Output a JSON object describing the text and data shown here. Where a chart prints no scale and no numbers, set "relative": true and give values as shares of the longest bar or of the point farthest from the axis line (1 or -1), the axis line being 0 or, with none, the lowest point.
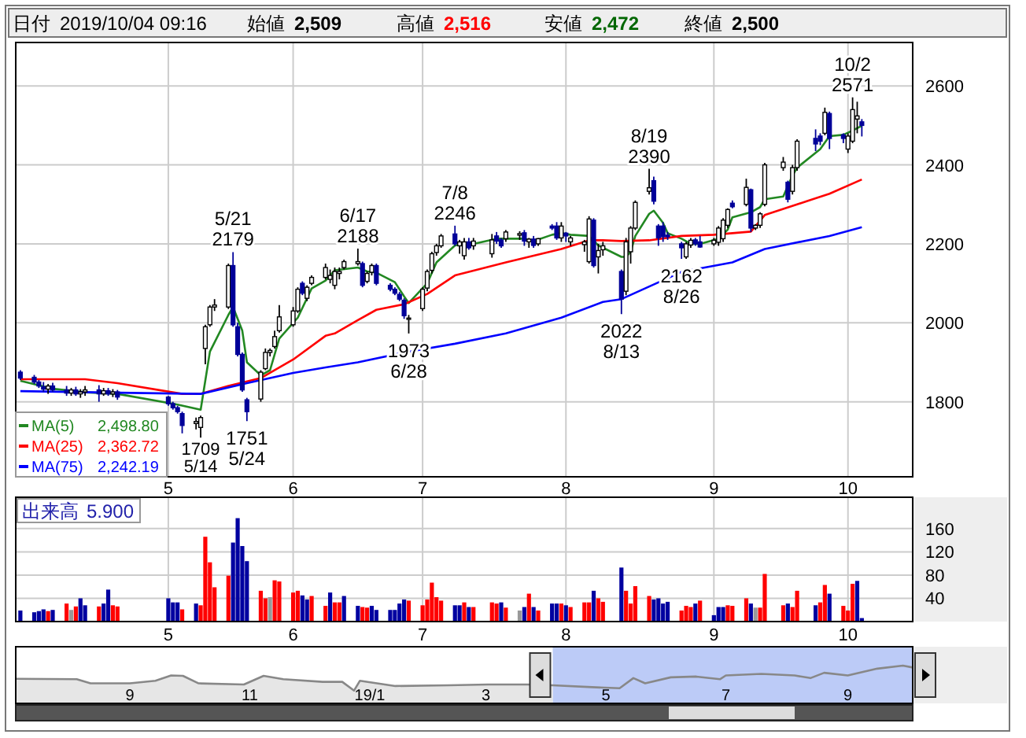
{
  "chart_data": [
    {
      "type": "candlestick",
      "grid": true,
      "legend": "bottom left",
      "colors": [
        "#000099",
        "#000099",
        "#000099",
        "#000099",
        "#ffffff",
        "#000099",
        "#000099",
        "#ffffff",
        "#000099",
        "#ffffff",
        "#ffffff",
        "#000099",
        "#ffffff",
        "#000099",
        "#ffffff",
        "#000099",
        "#000099",
        "#000099",
        "#000099",
        "#000099",
        "#ffffff",
        "#ffffff",
        "#ffffff",
        "#ffffff",
        "#ffffff",
        "#ffffff",
        "#000099",
        "#000099",
        "#000099",
        "#000099",
        "#ffffff",
        "#ffffff",
        "#ffffff",
        "#ffffff",
        "#ffffff",
        "#ffffff",
        "#ffffff",
        "#000099",
        "#ffffff",
        "#ffffff",
        "#ffffff",
        "#ffffff",
        "#ffffff",
        "#ffffff",
        "#ffffff",
        "#ffffff",
        "#000099",
        "#ffffff",
        "#ffffff",
        "#000099",
        "#000099",
        "#000099",
        "#000099",
        "#000099",
        "#ffffff",
        "#ffffff",
        "#ffffff",
        "#ffffff",
        "#ffffff",
        "#ffffff",
        "#000099",
        "#ffffff",
        "#ffffff",
        "#000099",
        "#ffffff",
        "#ffffff",
        "#000099",
        "#000099",
        "#ffffff",
        "#ffffff",
        "#000099",
        "#ffffff",
        "#000099",
        "#ffffff",
        "#000099",
        "#000099",
        "#ffffff",
        "#000099",
        "#ffffff",
        "#ffffff",
        "#ffffff",
        "#000099",
        "#ffffff",
        "#ffffff",
        "#000099",
        "#ffffff",
        "#ffffff",
        "#ffffff",
        "#ffffff",
        "#000099",
        "#000099",
        "#000099",
        "#000099",
        "#000099",
        "#ffffff",
        "#ffffff",
        "#000099",
        "#000099",
        "#ffffff",
        "#ffffff",
        "#ffffff",
        "#ffffff",
        "#000099",
        "#ffffff",
        "#000099",
        "#ffffff",
        "#ffffff",
        "#ffffff",
        "#ffffff",
        "#000099",
        "#ffffff",
        "#ffffff",
        "#000099",
        "#000099",
        "#ffffff",
        "#000099",
        "#000099",
        "#ffffff",
        "#ffffff",
        "#ffffff",
        "#000099"
      ],
      "annotations": [
        "日付 2019/10/04 09:16",
        "始値 2,509",
        "高値 2,516",
        "安値 2,472",
        "終値 2,500",
        {
          "text": "5/21 2179",
          "x": "2019-05-21",
          "y": 2179
        },
        {
          "text": "1709 5/14",
          "x": "2019-05-14",
          "y": 1709
        },
        {
          "text": "1751 5/24",
          "x": "2019-05-24",
          "y": 1751
        },
        {
          "text": "6/17 2188",
          "x": "2019-06-17",
          "y": 2188
        },
        {
          "text": "1973 6/28",
          "x": "2019-06-28",
          "y": 1973
        },
        {
          "text": "7/8 2246",
          "x": "2019-07-08",
          "y": 2246
        },
        {
          "text": "2022 8/13",
          "x": "2019-08-13",
          "y": 2022
        },
        {
          "text": "8/19 2390",
          "x": "2019-08-19",
          "y": 2390
        },
        {
          "text": "2162 8/26",
          "x": "2019-08-26",
          "y": 2162
        },
        {
          "text": "10/2 2571",
          "x": "2019-10-02",
          "y": 2571
        }
      ],
      "x": [
        "2019-04-05",
        "2019-04-08",
        "2019-04-09",
        "2019-04-10",
        "2019-04-11",
        "2019-04-12",
        "2019-04-15",
        "2019-04-16",
        "2019-04-17",
        "2019-04-18",
        "2019-04-19",
        "2019-04-22",
        "2019-04-23",
        "2019-04-24",
        "2019-04-25",
        "2019-04-26",
        "2019-05-07",
        "2019-05-08",
        "2019-05-09",
        "2019-05-10",
        "2019-05-13",
        "2019-05-14",
        "2019-05-15",
        "2019-05-16",
        "2019-05-17",
        "2019-05-20",
        "2019-05-21",
        "2019-05-22",
        "2019-05-23",
        "2019-05-24",
        "2019-05-27",
        "2019-05-28",
        "2019-05-29",
        "2019-05-30",
        "2019-05-31",
        "2019-06-03",
        "2019-06-04",
        "2019-06-05",
        "2019-06-06",
        "2019-06-07",
        "2019-06-10",
        "2019-06-11",
        "2019-06-12",
        "2019-06-13",
        "2019-06-14",
        "2019-06-17",
        "2019-06-18",
        "2019-06-19",
        "2019-06-20",
        "2019-06-21",
        "2019-06-24",
        "2019-06-25",
        "2019-06-26",
        "2019-06-27",
        "2019-06-28",
        "2019-07-01",
        "2019-07-02",
        "2019-07-03",
        "2019-07-04",
        "2019-07-05",
        "2019-07-08",
        "2019-07-09",
        "2019-07-10",
        "2019-07-11",
        "2019-07-12",
        "2019-07-16",
        "2019-07-17",
        "2019-07-18",
        "2019-07-19",
        "2019-07-22",
        "2019-07-23",
        "2019-07-24",
        "2019-07-25",
        "2019-07-26",
        "2019-07-29",
        "2019-07-30",
        "2019-07-31",
        "2019-08-01",
        "2019-08-02",
        "2019-08-05",
        "2019-08-06",
        "2019-08-07",
        "2019-08-08",
        "2019-08-09",
        "2019-08-13",
        "2019-08-14",
        "2019-08-15",
        "2019-08-16",
        "2019-08-19",
        "2019-08-20",
        "2019-08-21",
        "2019-08-22",
        "2019-08-23",
        "2019-08-26",
        "2019-08-27",
        "2019-08-28",
        "2019-08-29",
        "2019-08-30",
        "2019-09-02",
        "2019-09-03",
        "2019-09-04",
        "2019-09-05",
        "2019-09-06",
        "2019-09-09",
        "2019-09-10",
        "2019-09-11",
        "2019-09-12",
        "2019-09-13",
        "2019-09-17",
        "2019-09-18",
        "2019-09-19",
        "2019-09-20",
        "2019-09-24",
        "2019-09-25",
        "2019-09-26",
        "2019-09-27",
        "2019-09-30",
        "2019-10-01",
        "2019-10-02",
        "2019-10-03",
        "2019-10-04"
      ],
      "ohlc": [
        [
          1875,
          1880,
          1855,
          1860
        ],
        [
          1862,
          1868,
          1845,
          1850
        ],
        [
          1850,
          1855,
          1835,
          1840
        ],
        [
          1838,
          1850,
          1825,
          1832
        ],
        [
          1832,
          1845,
          1820,
          1840
        ],
        [
          1840,
          1848,
          1825,
          1830
        ],
        [
          1830,
          1840,
          1815,
          1822
        ],
        [
          1822,
          1835,
          1815,
          1830
        ],
        [
          1830,
          1838,
          1815,
          1820
        ],
        [
          1820,
          1832,
          1810,
          1825
        ],
        [
          1825,
          1840,
          1815,
          1830
        ],
        [
          1830,
          1842,
          1800,
          1820
        ],
        [
          1820,
          1835,
          1815,
          1828
        ],
        [
          1828,
          1835,
          1815,
          1820
        ],
        [
          1820,
          1832,
          1812,
          1825
        ],
        [
          1825,
          1830,
          1805,
          1812
        ],
        [
          1812,
          1815,
          1790,
          1795
        ],
        [
          1795,
          1800,
          1780,
          1785
        ],
        [
          1785,
          1790,
          1770,
          1775
        ],
        [
          1770,
          1775,
          1720,
          1740
        ],
        [
          1745,
          1760,
          1730,
          1750
        ],
        [
          1735,
          1765,
          1709,
          1760
        ],
        [
          1935,
          1995,
          1895,
          1990
        ],
        [
          1995,
          2045,
          1990,
          2040
        ],
        [
          2040,
          2060,
          2030,
          2045
        ],
        [
          2040,
          2150,
          2035,
          2145
        ],
        [
          2145,
          2179,
          1990,
          1995
        ],
        [
          1990,
          2000,
          1915,
          1920
        ],
        [
          1920,
          1925,
          1825,
          1830
        ],
        [
          1805,
          1810,
          1751,
          1775
        ],
        [
          1807,
          1880,
          1800,
          1875
        ],
        [
          1884,
          1935,
          1880,
          1925
        ],
        [
          1925,
          1935,
          1915,
          1930
        ],
        [
          1940,
          1980,
          1935,
          1965
        ],
        [
          1980,
          2045,
          1975,
          2015
        ],
        [
          1995,
          2040,
          1990,
          2030
        ],
        [
          2030,
          2090,
          2025,
          2085
        ],
        [
          2100,
          2105,
          2070,
          2075
        ],
        [
          2062,
          2095,
          2055,
          2090
        ],
        [
          2100,
          2120,
          2095,
          2115
        ],
        [
          2115,
          2150,
          2110,
          2140
        ],
        [
          2110,
          2135,
          2100,
          2120
        ],
        [
          2095,
          2140,
          2085,
          2130
        ],
        [
          2125,
          2140,
          2110,
          2130
        ],
        [
          2140,
          2160,
          2135,
          2155
        ],
        [
          2150,
          2188,
          2145,
          2155
        ],
        [
          2150,
          2155,
          2090,
          2095
        ],
        [
          2105,
          2130,
          2100,
          2125
        ],
        [
          2128,
          2150,
          2120,
          2145
        ],
        [
          2145,
          2150,
          2095,
          2100
        ],
        [
          2095,
          2100,
          2080,
          2085
        ],
        [
          2085,
          2090,
          2070,
          2075
        ],
        [
          2072,
          2078,
          2055,
          2060
        ],
        [
          2057,
          2062,
          2010,
          2018
        ],
        [
          2010,
          2020,
          1973,
          2012
        ],
        [
          2036,
          2090,
          2030,
          2085
        ],
        [
          2088,
          2135,
          2080,
          2130
        ],
        [
          2133,
          2180,
          2125,
          2175
        ],
        [
          2178,
          2200,
          2170,
          2195
        ],
        [
          2195,
          2225,
          2190,
          2220
        ],
        [
          2225,
          2246,
          2195,
          2200
        ],
        [
          2195,
          2210,
          2175,
          2205
        ],
        [
          2170,
          2215,
          2160,
          2205
        ],
        [
          2205,
          2215,
          2185,
          2190
        ],
        [
          2195,
          2215,
          2185,
          2207
        ],
        [
          2175,
          2225,
          2165,
          2210
        ],
        [
          2220,
          2230,
          2200,
          2207
        ],
        [
          2210,
          2215,
          2190,
          2195
        ],
        [
          2213,
          2235,
          2205,
          2230
        ],
        [
          2222,
          2232,
          2210,
          2226
        ],
        [
          2228,
          2235,
          2195,
          2207
        ],
        [
          2205,
          2215,
          2190,
          2212
        ],
        [
          2212,
          2220,
          2190,
          2196
        ],
        [
          2200,
          2215,
          2195,
          2213
        ],
        [
          2245,
          2250,
          2235,
          2240
        ],
        [
          2245,
          2255,
          2210,
          2215
        ],
        [
          2215,
          2255,
          2205,
          2245
        ],
        [
          2227,
          2230,
          2205,
          2220
        ],
        [
          2205,
          2220,
          2195,
          2215
        ],
        [
          2198,
          2210,
          2180,
          2205
        ],
        [
          2155,
          2270,
          2150,
          2263
        ],
        [
          2260,
          2265,
          2140,
          2145
        ],
        [
          2167,
          2200,
          2125,
          2183
        ],
        [
          2185,
          2205,
          2170,
          2195
        ],
        [
          2130,
          2135,
          2022,
          2060
        ],
        [
          2080,
          2215,
          2070,
          2205
        ],
        [
          2180,
          2245,
          2150,
          2240
        ],
        [
          2240,
          2310,
          2235,
          2305
        ],
        [
          2333,
          2390,
          2325,
          2342
        ],
        [
          2360,
          2370,
          2300,
          2308
        ],
        [
          2245,
          2250,
          2195,
          2215
        ],
        [
          2245,
          2255,
          2205,
          2218
        ],
        [
          2222,
          2230,
          2210,
          2218
        ],
        [
          2200,
          2205,
          2162,
          2190
        ],
        [
          2167,
          2205,
          2162,
          2200
        ],
        [
          2197,
          2215,
          2190,
          2209
        ],
        [
          2210,
          2215,
          2195,
          2200
        ],
        [
          2205,
          2220,
          2190,
          2192
        ],
        [
          2200,
          2215,
          2195,
          2209
        ],
        [
          2204,
          2245,
          2195,
          2240
        ],
        [
          2213,
          2265,
          2205,
          2260
        ],
        [
          2247,
          2290,
          2240,
          2287
        ],
        [
          2303,
          2310,
          2290,
          2294
        ],
        [
          2300,
          2365,
          2295,
          2343
        ],
        [
          2337,
          2340,
          2230,
          2240
        ],
        [
          2240,
          2250,
          2235,
          2247
        ],
        [
          2247,
          2280,
          2240,
          2276
        ],
        [
          2300,
          2405,
          2295,
          2400
        ],
        [
          2393,
          2420,
          2385,
          2407
        ],
        [
          2356,
          2360,
          2305,
          2313
        ],
        [
          2333,
          2400,
          2325,
          2393
        ],
        [
          2393,
          2465,
          2385,
          2460
        ],
        [
          2467,
          2490,
          2435,
          2453
        ],
        [
          2473,
          2480,
          2450,
          2460
        ],
        [
          2480,
          2545,
          2475,
          2533
        ],
        [
          2530,
          2535,
          2440,
          2467
        ],
        [
          2476,
          2480,
          2455,
          2467
        ],
        [
          2440,
          2480,
          2430,
          2473
        ],
        [
          2460,
          2571,
          2455,
          2540
        ],
        [
          2516,
          2560,
          2480,
          2524
        ],
        [
          2509,
          2516,
          2472,
          2500
        ]
      ],
      "series": [
        {
          "type": "line",
          "name": "MA(5) 2,498.80",
          "color": "#228822",
          "x": [
            "2019-04-05",
            "2019-04-12",
            "2019-04-19",
            "2019-04-26",
            "2019-05-09",
            "2019-05-14",
            "2019-05-16",
            "2019-05-20",
            "2019-05-21",
            "2019-05-23",
            "2019-05-24",
            "2019-05-27",
            "2019-05-29",
            "2019-05-31",
            "2019-06-04",
            "2019-06-07",
            "2019-06-10",
            "2019-06-12",
            "2019-06-17",
            "2019-06-19",
            "2019-06-21",
            "2019-06-25",
            "2019-06-27",
            "2019-06-28",
            "2019-07-02",
            "2019-07-04",
            "2019-07-08",
            "2019-07-10",
            "2019-07-12",
            "2019-07-17",
            "2019-07-19",
            "2019-07-23",
            "2019-07-25",
            "2019-07-29",
            "2019-07-31",
            "2019-08-02",
            "2019-08-06",
            "2019-08-08",
            "2019-08-13",
            "2019-08-14",
            "2019-08-15",
            "2019-08-16",
            "2019-08-19",
            "2019-08-20",
            "2019-08-22",
            "2019-08-23",
            "2019-08-26",
            "2019-08-28",
            "2019-08-30",
            "2019-09-03",
            "2019-09-05",
            "2019-09-06",
            "2019-09-10",
            "2019-09-12",
            "2019-09-13",
            "2019-09-17",
            "2019-09-19",
            "2019-09-20",
            "2019-09-25",
            "2019-09-27",
            "2019-09-30",
            "2019-10-02",
            "2019-10-04"
          ],
          "values": [
            1853,
            1833,
            1824,
            1820,
            1793,
            1780,
            1927,
            2020,
            2040,
            1980,
            1900,
            1867,
            1880,
            1960,
            2013,
            2087,
            2107,
            2133,
            2140,
            2130,
            2127,
            2103,
            2067,
            2050,
            2100,
            2153,
            2196,
            2200,
            2200,
            2213,
            2213,
            2213,
            2207,
            2223,
            2227,
            2223,
            2220,
            2196,
            2167,
            2167,
            2180,
            2220,
            2276,
            2284,
            2253,
            2227,
            2213,
            2200,
            2200,
            2213,
            2236,
            2267,
            2280,
            2293,
            2313,
            2320,
            2373,
            2393,
            2440,
            2473,
            2476,
            2487,
            2499
          ]
        },
        {
          "type": "line",
          "name": "MA(25) 2,362.72",
          "color": "#ff0000",
          "x": [
            "2019-04-05",
            "2019-04-19",
            "2019-04-26",
            "2019-05-10",
            "2019-05-14",
            "2019-05-20",
            "2019-05-27",
            "2019-06-03",
            "2019-06-10",
            "2019-06-12",
            "2019-06-17",
            "2019-06-21",
            "2019-06-27",
            "2019-07-02",
            "2019-07-08",
            "2019-07-19",
            "2019-07-31",
            "2019-08-06",
            "2019-08-09",
            "2019-08-13",
            "2019-08-19",
            "2019-08-26",
            "2019-09-02",
            "2019-09-06",
            "2019-09-10",
            "2019-09-13",
            "2019-09-20",
            "2019-09-27",
            "2019-10-04"
          ],
          "values": [
            1857,
            1857,
            1847,
            1820,
            1820,
            1840,
            1860,
            1907,
            1967,
            1973,
            2007,
            2033,
            2047,
            2073,
            2120,
            2153,
            2187,
            2209,
            2209,
            2207,
            2209,
            2220,
            2223,
            2227,
            2231,
            2273,
            2300,
            2327,
            2363
          ]
        },
        {
          "type": "line",
          "name": "MA(75) 2,242.19",
          "color": "#0000ff",
          "x": [
            "2019-04-05",
            "2019-04-26",
            "2019-05-14",
            "2019-05-24",
            "2019-06-03",
            "2019-06-10",
            "2019-06-17",
            "2019-06-28",
            "2019-07-08",
            "2019-07-19",
            "2019-07-31",
            "2019-08-09",
            "2019-08-13",
            "2019-08-26",
            "2019-09-06",
            "2019-09-13",
            "2019-09-27",
            "2019-10-04"
          ],
          "values": [
            1827,
            1823,
            1820,
            1847,
            1873,
            1887,
            1900,
            1927,
            1947,
            1973,
            2013,
            2053,
            2060,
            2129,
            2153,
            2187,
            2220,
            2242
          ]
        }
      ],
      "xlim": [
        "2019-04-04",
        "2019-10-15"
      ],
      "xticks": [
        {
          "value": "2019-05-07",
          "label": "5"
        },
        {
          "value": "2019-06-03",
          "label": "6"
        },
        {
          "value": "2019-07-01",
          "label": "7"
        },
        {
          "value": "2019-08-01",
          "label": "8"
        },
        {
          "value": "2019-09-02",
          "label": "9"
        },
        {
          "value": "2019-10-01",
          "label": "10"
        }
      ],
      "ylim": [
        1610,
        2710
      ],
      "yticks": [
        1800,
        2000,
        2200,
        2400,
        2600
      ]
    },
    {
      "type": "bar",
      "grid": true,
      "annotations": [
        "出来高 5.900"
      ],
      "x": [
        "2019-04-05",
        "2019-04-08",
        "2019-04-09",
        "2019-04-10",
        "2019-04-11",
        "2019-04-12",
        "2019-04-15",
        "2019-04-16",
        "2019-04-17",
        "2019-04-18",
        "2019-04-19",
        "2019-04-22",
        "2019-04-23",
        "2019-04-24",
        "2019-04-25",
        "2019-04-26",
        "2019-05-07",
        "2019-05-08",
        "2019-05-09",
        "2019-05-10",
        "2019-05-13",
        "2019-05-14",
        "2019-05-15",
        "2019-05-16",
        "2019-05-17",
        "2019-05-20",
        "2019-05-21",
        "2019-05-22",
        "2019-05-23",
        "2019-05-24",
        "2019-05-27",
        "2019-05-28",
        "2019-05-29",
        "2019-05-30",
        "2019-05-31",
        "2019-06-03",
        "2019-06-04",
        "2019-06-05",
        "2019-06-06",
        "2019-06-07",
        "2019-06-10",
        "2019-06-11",
        "2019-06-12",
        "2019-06-13",
        "2019-06-14",
        "2019-06-17",
        "2019-06-18",
        "2019-06-19",
        "2019-06-20",
        "2019-06-21",
        "2019-06-24",
        "2019-06-25",
        "2019-06-26",
        "2019-06-27",
        "2019-06-28",
        "2019-07-01",
        "2019-07-02",
        "2019-07-03",
        "2019-07-04",
        "2019-07-05",
        "2019-07-08",
        "2019-07-09",
        "2019-07-10",
        "2019-07-11",
        "2019-07-12",
        "2019-07-16",
        "2019-07-17",
        "2019-07-18",
        "2019-07-19",
        "2019-07-22",
        "2019-07-23",
        "2019-07-24",
        "2019-07-25",
        "2019-07-26",
        "2019-07-29",
        "2019-07-30",
        "2019-07-31",
        "2019-08-01",
        "2019-08-02",
        "2019-08-05",
        "2019-08-06",
        "2019-08-07",
        "2019-08-08",
        "2019-08-09",
        "2019-08-13",
        "2019-08-14",
        "2019-08-15",
        "2019-08-16",
        "2019-08-19",
        "2019-08-20",
        "2019-08-21",
        "2019-08-22",
        "2019-08-23",
        "2019-08-26",
        "2019-08-27",
        "2019-08-28",
        "2019-08-29",
        "2019-08-30",
        "2019-09-02",
        "2019-09-03",
        "2019-09-04",
        "2019-09-05",
        "2019-09-06",
        "2019-09-09",
        "2019-09-10",
        "2019-09-11",
        "2019-09-12",
        "2019-09-13",
        "2019-09-17",
        "2019-09-18",
        "2019-09-19",
        "2019-09-20",
        "2019-09-24",
        "2019-09-25",
        "2019-09-26",
        "2019-09-27",
        "2019-09-30",
        "2019-10-01",
        "2019-10-02",
        "2019-10-03",
        "2019-10-04"
      ],
      "values": [
        19,
        16,
        18,
        21,
        18,
        20,
        31,
        20,
        26,
        40,
        28,
        26,
        31,
        55,
        28,
        26,
        40,
        33,
        33,
        21,
        31,
        28,
        146,
        102,
        59,
        79,
        136,
        178,
        130,
        104,
        53,
        40,
        42,
        71,
        69,
        50,
        53,
        45,
        38,
        44,
        27,
        50,
        33,
        33,
        44,
        27,
        25,
        24,
        27,
        20,
        20,
        20,
        31,
        38,
        36,
        28,
        38,
        67,
        42,
        36,
        28,
        28,
        33,
        25,
        25,
        33,
        31,
        33,
        24,
        19,
        25,
        48,
        25,
        19,
        31,
        31,
        31,
        28,
        25,
        33,
        33,
        53,
        40,
        34,
        93,
        53,
        31,
        61,
        44,
        38,
        40,
        31,
        34,
        19,
        27,
        25,
        31,
        36,
        11,
        25,
        25,
        28,
        27,
        40,
        31,
        24,
        24,
        82,
        28,
        31,
        25,
        53,
        28,
        33,
        63,
        48,
        27,
        19,
        65,
        70,
        6
      ],
      "colors": [
        "#0000a0",
        "#0000a0",
        "#0000a0",
        "#0000a0",
        "#ff0000",
        "#0000a0",
        "#ff0000",
        "#999999",
        "#ff0000",
        "#0000a0",
        "#0000a0",
        "#ff0000",
        "#0000a0",
        "#0000a0",
        "#ff0000",
        "#ff0000",
        "#0000a0",
        "#0000a0",
        "#0000a0",
        "#ff0000",
        "#0000a0",
        "#ff0000",
        "#ff0000",
        "#ff0000",
        "#ff0000",
        "#ff0000",
        "#0000a0",
        "#0000a0",
        "#0000a0",
        "#0000a0",
        "#ff0000",
        "#ff0000",
        "#999999",
        "#ff0000",
        "#ff0000",
        "#ff0000",
        "#ff0000",
        "#0000a0",
        "#0000a0",
        "#ff0000",
        "#ff0000",
        "#0000a0",
        "#ff0000",
        "#ff0000",
        "#0000a0",
        "#0000a0",
        "#ff0000",
        "#ff0000",
        "#0000a0",
        "#0000a0",
        "#0000a0",
        "#0000a0",
        "#0000a0",
        "#0000a0",
        "#ff0000",
        "#ff0000",
        "#ff0000",
        "#ff0000",
        "#ff0000",
        "#ff0000",
        "#0000a0",
        "#0000a0",
        "#ff0000",
        "#0000a0",
        "#ff0000",
        "#ff0000",
        "#ff0000",
        "#0000a0",
        "#ff0000",
        "#999999",
        "#0000a0",
        "#ff0000",
        "#0000a0",
        "#ff0000",
        "#0000a0",
        "#0000a0",
        "#ff0000",
        "#0000a0",
        "#ff0000",
        "#ff0000",
        "#ff0000",
        "#0000a0",
        "#ff0000",
        "#ff0000",
        "#0000a0",
        "#ff0000",
        "#ff0000",
        "#ff0000",
        "#ff0000",
        "#0000a0",
        "#0000a0",
        "#0000a0",
        "#0000a0",
        "#ff0000",
        "#ff0000",
        "#ff0000",
        "#0000a0",
        "#ff0000",
        "#0000a0",
        "#0000a0",
        "#0000a0",
        "#ff0000",
        "#ff0000",
        "#ff0000",
        "#0000a0",
        "#999999",
        "#ff0000",
        "#ff0000",
        "#ff0000",
        "#0000a0",
        "#ff0000",
        "#ff0000",
        "#0000a0",
        "#ff0000",
        "#ff0000",
        "#0000a0",
        "#ff0000",
        "#ff0000",
        "#ff0000",
        "#0000a0",
        "#0000a0"
      ],
      "xlim": [
        "2019-04-04",
        "2019-10-15"
      ],
      "xticks": [
        {
          "value": "2019-05-07",
          "label": "5"
        },
        {
          "value": "2019-06-03",
          "label": "6"
        },
        {
          "value": "2019-07-01",
          "label": "7"
        },
        {
          "value": "2019-08-01",
          "label": "8"
        },
        {
          "value": "2019-09-02",
          "label": "9"
        },
        {
          "value": "2019-10-01",
          "label": "10"
        }
      ],
      "ylim": [
        0,
        214
      ],
      "yticks": [
        40,
        80,
        120,
        160
      ]
    },
    {
      "type": "area",
      "relative": true,
      "color": "#888888",
      "x": [
        "2018-07-05",
        "2018-08-05",
        "2018-08-12",
        "2018-09-01",
        "2018-09-14",
        "2018-09-22",
        "2018-09-28",
        "2018-10-06",
        "2018-10-29",
        "2018-11-08",
        "2018-11-18",
        "2018-12-08",
        "2018-12-18",
        "2018-12-24",
        "2018-12-27",
        "2019-01-14",
        "2019-02-10",
        "2019-03-02",
        "2019-03-22",
        "2019-04-04",
        "2019-04-24",
        "2019-05-08",
        "2019-05-15",
        "2019-05-21",
        "2019-06-03",
        "2019-06-16",
        "2019-06-28",
        "2019-07-01",
        "2019-07-19",
        "2019-08-05",
        "2019-08-13",
        "2019-08-20",
        "2019-09-01",
        "2019-09-16",
        "2019-09-29",
        "2019-10-04"
      ],
      "values": [
        0.65,
        0.64,
        0.53,
        0.53,
        0.6,
        0.74,
        0.73,
        0.53,
        0.5,
        0.73,
        0.64,
        0.57,
        0.57,
        0.34,
        0.6,
        0.46,
        0.48,
        0.5,
        0.5,
        0.48,
        0.43,
        0.4,
        0.67,
        0.53,
        0.69,
        0.71,
        0.64,
        0.74,
        0.78,
        0.74,
        0.67,
        0.81,
        0.74,
        0.92,
        1,
        0.95
      ],
      "xlim": [
        "2018-07-05",
        "2019-10-04"
      ],
      "xticks": [
        {
          "value": "2018-09-01",
          "label": "9"
        },
        {
          "value": "2018-11-01",
          "label": "11"
        },
        {
          "value": "2019-01-01",
          "label": "19/1"
        },
        {
          "value": "2019-03-01",
          "label": "3"
        },
        {
          "value": "2019-05-01",
          "label": "5"
        },
        {
          "value": "2019-07-01",
          "label": "7"
        },
        {
          "value": "2019-09-01",
          "label": "9"
        }
      ],
      "bands": [
        {
          "axis": "x",
          "from": "2019-04-04",
          "to": "2019-10-04",
          "color": "#bccbf7"
        }
      ]
    }
  ]
}
